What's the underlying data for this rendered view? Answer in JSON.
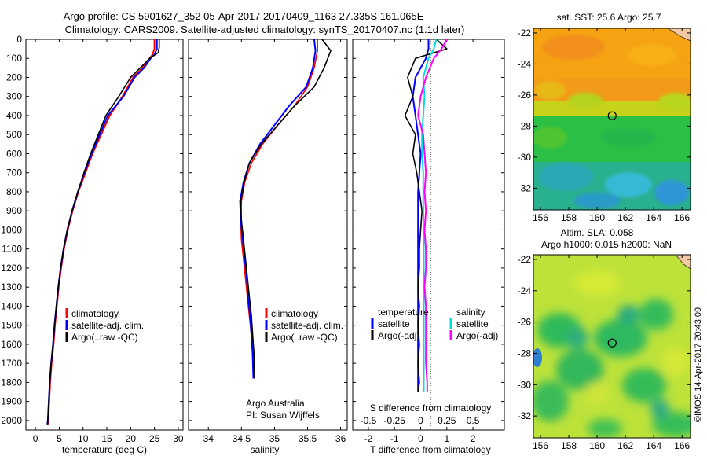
{
  "header": {
    "title_line1": "Argo profile: CS 5901627_352 05-Apr-2017 20170409_1163 27.335S 161.065E",
    "title_line2": "Climatology: CARS2009. Satellite-adjusted climatology: synTS_20170407.nc (1.1d later)"
  },
  "colors": {
    "climatology": "#ff0000",
    "satellite": "#0000ff",
    "argo": "#000000",
    "satellite_salinity": "#00dddd",
    "argo_salinity": "#ff00ff"
  },
  "depth_axis": {
    "range": [
      0,
      2050
    ],
    "ticks": [
      0,
      100,
      200,
      300,
      400,
      500,
      600,
      700,
      800,
      900,
      1000,
      1100,
      1200,
      1300,
      1400,
      1500,
      1600,
      1700,
      1800,
      1900,
      2000
    ]
  },
  "chart_data": [
    {
      "type": "line",
      "xlabel": "temperature (deg C)",
      "ylabel": "",
      "xlim": [
        -2,
        31
      ],
      "ylim": [
        2050,
        0
      ],
      "xticks": [
        0,
        5,
        10,
        15,
        20,
        25,
        30
      ],
      "legend": [
        "climatology",
        "satellite-adj. clim.",
        "Argo(..raw -QC)"
      ],
      "series": [
        {
          "name": "climatology",
          "x": [
            25.0,
            25.0,
            24.6,
            24.0,
            22.5,
            20.5,
            18.3,
            15.6,
            13.8,
            12.0,
            10.5,
            9.0,
            7.8,
            6.8,
            6.0,
            5.4,
            4.9,
            4.5,
            4.1,
            3.8,
            3.4,
            3.1,
            2.9,
            2.7,
            2.6
          ],
          "y": [
            0,
            50,
            80,
            100,
            150,
            200,
            300,
            400,
            500,
            600,
            700,
            800,
            900,
            1000,
            1100,
            1200,
            1300,
            1400,
            1500,
            1600,
            1700,
            1800,
            1900,
            2000,
            2020
          ]
        },
        {
          "name": "satellite-adj. clim.",
          "x": [
            25.5,
            25.5,
            25.0,
            24.2,
            22.8,
            20.8,
            18.5,
            15.2,
            13.5,
            11.8,
            10.3,
            8.9,
            7.7,
            6.7,
            5.9,
            5.3,
            4.8,
            4.4,
            4.0,
            3.7,
            3.3,
            3.0,
            2.8,
            2.6,
            2.5
          ],
          "y": [
            0,
            50,
            80,
            100,
            150,
            200,
            300,
            400,
            500,
            600,
            700,
            800,
            900,
            1000,
            1100,
            1200,
            1300,
            1400,
            1500,
            1600,
            1700,
            1800,
            1900,
            2000,
            2020
          ]
        },
        {
          "name": "Argo(..raw -QC)",
          "x": [
            26.0,
            26.0,
            25.8,
            24.0,
            22.0,
            20.0,
            17.5,
            14.8,
            13.2,
            11.6,
            10.2,
            8.9,
            7.7,
            6.7,
            5.9,
            5.3,
            4.8,
            4.4,
            4.0,
            3.7,
            3.3,
            3.0,
            2.8,
            2.6,
            2.5
          ],
          "y": [
            0,
            40,
            70,
            100,
            150,
            200,
            300,
            400,
            500,
            600,
            700,
            800,
            900,
            1000,
            1100,
            1200,
            1300,
            1400,
            1500,
            1600,
            1700,
            1800,
            1900,
            2000,
            2020
          ]
        }
      ]
    },
    {
      "type": "line",
      "xlabel": "salinity",
      "ylabel": "",
      "xlim": [
        33.7,
        36.1
      ],
      "ylim": [
        2050,
        0
      ],
      "xticks": [
        34,
        34.5,
        35,
        35.5,
        36
      ],
      "legend": [
        "climatology",
        "satellite-adj. clim.",
        "Argo(..raw -QC)"
      ],
      "annotations": [
        "Argo Australia",
        "PI: Susan Wijffels"
      ],
      "series": [
        {
          "name": "climatology",
          "x": [
            35.65,
            35.65,
            35.6,
            35.5,
            35.3,
            35.05,
            34.82,
            34.65,
            34.55,
            34.5,
            34.49,
            34.5,
            34.53,
            34.56,
            34.59,
            34.62,
            34.65,
            34.67,
            34.68
          ],
          "y": [
            0,
            60,
            150,
            250,
            350,
            450,
            550,
            650,
            750,
            850,
            950,
            1050,
            1150,
            1250,
            1350,
            1450,
            1550,
            1650,
            1780
          ]
        },
        {
          "name": "satellite-adj. clim.",
          "x": [
            35.6,
            35.62,
            35.58,
            35.48,
            35.22,
            35.0,
            34.78,
            34.62,
            34.53,
            34.48,
            34.49,
            34.52,
            34.55,
            34.58,
            34.6,
            34.63,
            34.65,
            34.67,
            34.68
          ],
          "y": [
            0,
            60,
            150,
            250,
            350,
            450,
            550,
            650,
            750,
            850,
            950,
            1050,
            1150,
            1250,
            1350,
            1450,
            1550,
            1650,
            1780
          ]
        },
        {
          "name": "Argo(..raw -QC)",
          "x": [
            35.72,
            35.85,
            35.75,
            35.6,
            35.3,
            35.05,
            34.8,
            34.62,
            34.54,
            34.49,
            34.5,
            34.53,
            34.56,
            34.59,
            34.62,
            34.65,
            34.67,
            34.69,
            34.7
          ],
          "y": [
            0,
            60,
            150,
            250,
            350,
            450,
            550,
            650,
            750,
            850,
            950,
            1050,
            1150,
            1250,
            1350,
            1450,
            1550,
            1650,
            1780
          ]
        }
      ]
    },
    {
      "type": "line",
      "xlabel": "T difference from climatology",
      "xlabel_top": "S difference from climatology",
      "ylabel": "",
      "xlim": [
        -2.6,
        3.2
      ],
      "ylim": [
        2050,
        0
      ],
      "xticks": [
        -2,
        -1,
        0,
        1,
        2
      ],
      "xticks_salinity": [
        "-0.5",
        "-0.25",
        "0",
        "0.25",
        "0.5"
      ],
      "legend_temperature": [
        "temperature",
        "satellite",
        "Argo(-adj)"
      ],
      "legend_salinity": [
        "salinity",
        "satellite",
        "Argo(-adj)"
      ],
      "series": [
        {
          "name": "satellite",
          "x": [
            0.3,
            0.3,
            0.2,
            -0.2,
            -0.3,
            -0.2,
            -0.1,
            0.0,
            -0.05,
            -0.1,
            -0.1,
            -0.1,
            -0.1,
            -0.1,
            -0.1,
            -0.1,
            -0.1,
            -0.1,
            -0.1,
            -0.1,
            -0.1
          ],
          "y": [
            0,
            50,
            100,
            200,
            300,
            400,
            500,
            600,
            700,
            800,
            900,
            1000,
            1100,
            1200,
            1300,
            1400,
            1500,
            1600,
            1700,
            1800,
            1850
          ]
        },
        {
          "name": "Argo(-adj)",
          "x": [
            0.6,
            1.0,
            -0.2,
            -0.5,
            -0.3,
            -0.6,
            -0.2,
            -0.3,
            -0.15,
            -0.05,
            0.05,
            0.0,
            -0.05,
            -0.05,
            -0.1,
            -0.05,
            -0.1,
            -0.05,
            -0.1,
            -0.05,
            -0.1
          ],
          "y": [
            0,
            50,
            100,
            200,
            300,
            400,
            500,
            600,
            700,
            800,
            900,
            1000,
            1100,
            1200,
            1300,
            1400,
            1500,
            1600,
            1700,
            1800,
            1850
          ]
        },
        {
          "name": "satellite",
          "x": [
            0.6,
            0.5,
            0.3,
            0.1,
            0.15,
            0.1,
            0.05,
            0.05,
            0.1,
            0.1,
            0.1,
            0.12,
            0.12,
            0.12,
            0.12,
            0.12,
            0.12,
            0.12,
            0.12,
            0.12,
            0.12
          ],
          "y": [
            0,
            50,
            100,
            200,
            300,
            400,
            500,
            600,
            700,
            800,
            900,
            1000,
            1100,
            1200,
            1300,
            1400,
            1500,
            1600,
            1700,
            1800,
            1850
          ]
        },
        {
          "name": "Argo(-adj)",
          "x": [
            1.0,
            0.8,
            0.5,
            0.2,
            0.0,
            -0.1,
            0.1,
            0.15,
            0.2,
            0.15,
            0.2,
            0.15,
            0.2,
            0.2,
            0.15,
            0.2,
            0.2,
            0.2,
            0.2,
            0.25,
            0.25
          ],
          "y": [
            0,
            50,
            100,
            200,
            300,
            400,
            500,
            600,
            700,
            800,
            900,
            1000,
            1100,
            1200,
            1300,
            1400,
            1500,
            1600,
            1700,
            1800,
            1850
          ]
        }
      ]
    },
    {
      "type": "heatmap",
      "title": "sat. SST: 25.6  Argo: 25.7",
      "xlim": [
        155.5,
        166.6
      ],
      "ylim": [
        -33.4,
        -21.7
      ],
      "xticks": [
        156,
        158,
        160,
        162,
        164,
        166
      ],
      "yticks": [
        -22,
        -24,
        -26,
        -28,
        -30,
        -32
      ],
      "marker": {
        "lon": 161.065,
        "lat": -27.335
      },
      "bands": [
        {
          "lat": [
            -22,
            -26.3
          ],
          "color": "#f6a313"
        },
        {
          "lat": [
            -26.3,
            -27.6
          ],
          "color": "#c7d21a"
        },
        {
          "lat": [
            -27.6,
            -30.2
          ],
          "color": "#2bbf45"
        },
        {
          "lat": [
            -30.2,
            -33.4
          ],
          "color": "#2aa8c9"
        }
      ]
    },
    {
      "type": "heatmap",
      "title_line1": "Altim. SLA: 0.058",
      "title_line2": "Argo h1000: 0.015 h2000: NaN",
      "xlim": [
        155.5,
        166.6
      ],
      "ylim": [
        -33.4,
        -21.7
      ],
      "xticks": [
        156,
        158,
        160,
        162,
        164,
        166
      ],
      "yticks": [
        -22,
        -24,
        -26,
        -28,
        -30,
        -32
      ],
      "marker": {
        "lon": 161.065,
        "lat": -27.335
      }
    }
  ],
  "watermark": "©IMOS 14-Apr-2017 20:43:09"
}
